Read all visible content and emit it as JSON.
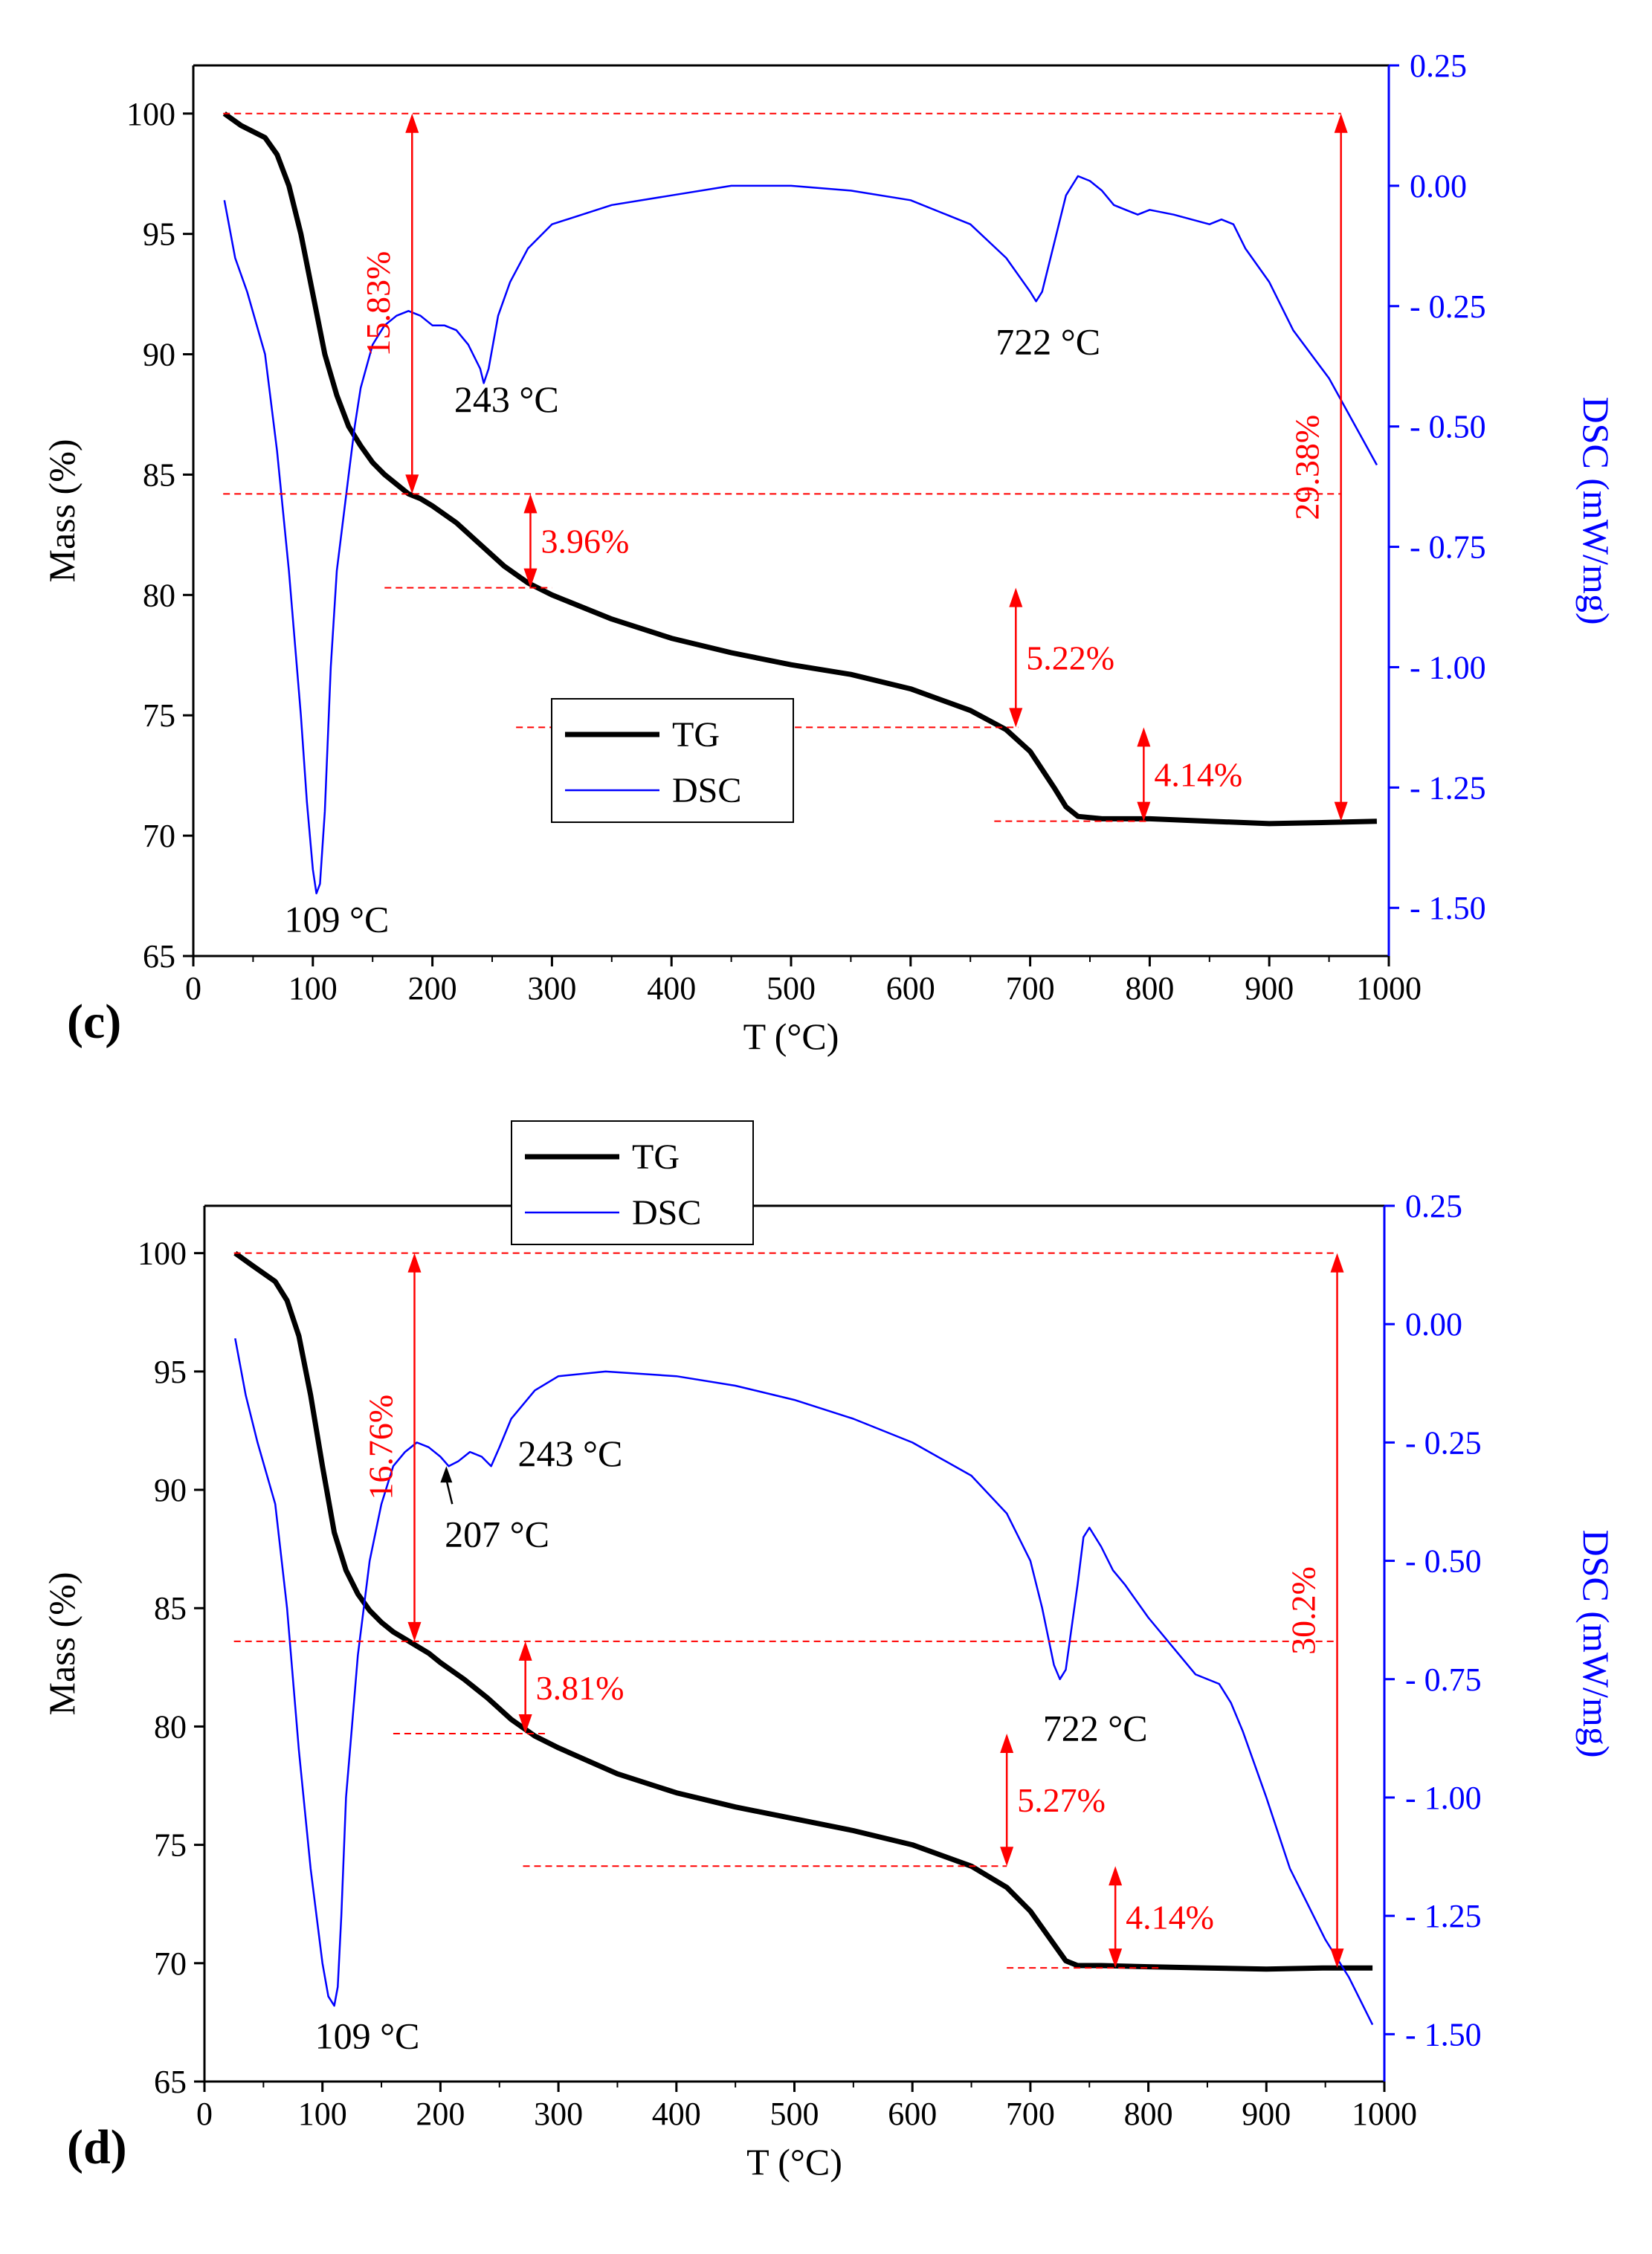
{
  "chart_data": [
    {
      "panel_label": "(c)",
      "type": "line",
      "xlabel": "T (°C)",
      "ylabel_left": "Mass (%)",
      "ylabel_right": "DSC (mW/mg)",
      "xlim": [
        0,
        1000
      ],
      "ylim_left": [
        65,
        102
      ],
      "ylim_right": [
        -1.6,
        0.25
      ],
      "x_ticks": [
        "0",
        "100",
        "200",
        "300",
        "400",
        "500",
        "600",
        "700",
        "800",
        "900",
        "1000"
      ],
      "y_ticks_left": [
        "65",
        "70",
        "75",
        "80",
        "85",
        "90",
        "95",
        "100"
      ],
      "y_ticks_right": [
        "0.25",
        "0.00",
        "- 0.25",
        "- 0.50",
        "- 0.75",
        "- 1.00",
        "- 1.25",
        "- 1.50"
      ],
      "y_ticks_right_values": [
        0.25,
        0,
        -0.25,
        -0.5,
        -0.75,
        -1.0,
        -1.25,
        -1.5
      ],
      "legend": [
        "TG",
        "DSC"
      ],
      "series": [
        {
          "name": "TG",
          "axis": "left",
          "color": "#000000",
          "x": [
            26,
            40,
            60,
            70,
            80,
            90,
            100,
            110,
            120,
            130,
            140,
            150,
            160,
            170,
            180,
            190,
            200,
            220,
            240,
            260,
            280,
            300,
            350,
            400,
            450,
            500,
            550,
            600,
            650,
            680,
            700,
            720,
            730,
            740,
            760,
            800,
            850,
            900,
            950,
            990
          ],
          "y": [
            100,
            99.5,
            99,
            98.3,
            97,
            95,
            92.5,
            90,
            88.3,
            87,
            86.2,
            85.5,
            85,
            84.6,
            84.2,
            84,
            83.7,
            83,
            82.1,
            81.2,
            80.5,
            80,
            79,
            78.2,
            77.6,
            77.1,
            76.7,
            76.1,
            75.2,
            74.4,
            73.5,
            72,
            71.2,
            70.8,
            70.7,
            70.7,
            70.6,
            70.5,
            70.55,
            70.6
          ]
        },
        {
          "name": "DSC",
          "axis": "right",
          "color": "#0000ff",
          "x": [
            26,
            35,
            45,
            60,
            70,
            80,
            90,
            95,
            100,
            103,
            106,
            110,
            115,
            120,
            125,
            130,
            135,
            140,
            150,
            160,
            170,
            180,
            190,
            200,
            210,
            220,
            230,
            240,
            243,
            247,
            255,
            265,
            280,
            300,
            350,
            400,
            450,
            500,
            550,
            600,
            650,
            680,
            700,
            705,
            710,
            720,
            730,
            740,
            750,
            760,
            770,
            780,
            790,
            800,
            820,
            850,
            860,
            870,
            880,
            900,
            920,
            950,
            990
          ],
          "y": [
            -0.03,
            -0.15,
            -0.22,
            -0.35,
            -0.55,
            -0.8,
            -1.1,
            -1.28,
            -1.42,
            -1.47,
            -1.45,
            -1.3,
            -1.0,
            -0.8,
            -0.7,
            -0.6,
            -0.5,
            -0.42,
            -0.33,
            -0.29,
            -0.27,
            -0.26,
            -0.27,
            -0.29,
            -0.29,
            -0.3,
            -0.33,
            -0.38,
            -0.41,
            -0.38,
            -0.27,
            -0.2,
            -0.13,
            -0.08,
            -0.04,
            -0.02,
            0.0,
            0.0,
            -0.01,
            -0.03,
            -0.08,
            -0.15,
            -0.22,
            -0.24,
            -0.22,
            -0.12,
            -0.02,
            0.02,
            0.01,
            -0.01,
            -0.04,
            -0.05,
            -0.06,
            -0.05,
            -0.06,
            -0.08,
            -0.07,
            -0.08,
            -0.13,
            -0.2,
            -0.3,
            -0.4,
            -0.58
          ]
        }
      ],
      "annotations": [
        {
          "text": "109 °C",
          "x": 120,
          "y_dsc": -1.55,
          "color": "#000000"
        },
        {
          "text": "243 °C",
          "x": 262,
          "y_dsc": -0.47,
          "color": "#000000"
        },
        {
          "text": "722 °C",
          "x": 715,
          "y_dsc": -0.35,
          "color": "#000000"
        }
      ],
      "mass_losses": [
        {
          "label": "15.83%",
          "x": 183,
          "from": 100,
          "to": 84.2,
          "line_start": 25,
          "line_end": 960,
          "label_side": "left",
          "rotated": true
        },
        {
          "label": "3.96%",
          "x": 282,
          "from": 84.2,
          "to": 80.3,
          "line_start": 160,
          "line_end": 300,
          "label_side": "right",
          "rotated": false
        },
        {
          "label": "5.22%",
          "x": 688,
          "from": 80.3,
          "to": 74.5,
          "line_start": 270,
          "line_end": 690,
          "label_side": "right",
          "rotated": false
        },
        {
          "label": "4.14%",
          "x": 795,
          "from": 74.5,
          "to": 70.6,
          "line_start": 670,
          "line_end": 800,
          "label_side": "right",
          "rotated": false
        },
        {
          "label": "29.38%",
          "x": 960,
          "from": 100,
          "to": 70.6,
          "line_start": 960,
          "line_end": 960,
          "label_side": "left",
          "rotated": true
        }
      ]
    },
    {
      "panel_label": "(d)",
      "type": "line",
      "xlabel": "T (°C)",
      "ylabel_left": "Mass (%)",
      "ylabel_right": "DSC (mW/mg)",
      "xlim": [
        0,
        1000
      ],
      "ylim_left": [
        65,
        102
      ],
      "ylim_right": [
        -1.6,
        0.25
      ],
      "x_ticks": [
        "0",
        "100",
        "200",
        "300",
        "400",
        "500",
        "600",
        "700",
        "800",
        "900",
        "1000"
      ],
      "y_ticks_left": [
        "65",
        "70",
        "75",
        "80",
        "85",
        "90",
        "95",
        "100"
      ],
      "y_ticks_right": [
        "0.25",
        "0.00",
        "- 0.25",
        "- 0.50",
        "- 0.75",
        "- 1.00",
        "- 1.25",
        "- 1.50"
      ],
      "y_ticks_right_values": [
        0.25,
        0,
        -0.25,
        -0.5,
        -0.75,
        -1.0,
        -1.25,
        -1.5
      ],
      "legend": [
        "TG",
        "DSC"
      ],
      "series": [
        {
          "name": "TG",
          "axis": "left",
          "color": "#000000",
          "x": [
            26,
            40,
            60,
            70,
            80,
            90,
            100,
            110,
            120,
            130,
            140,
            150,
            160,
            170,
            180,
            190,
            200,
            220,
            240,
            260,
            280,
            300,
            350,
            400,
            450,
            500,
            550,
            600,
            650,
            680,
            700,
            720,
            730,
            740,
            760,
            800,
            850,
            900,
            950,
            990
          ],
          "y": [
            100,
            99.5,
            98.8,
            98,
            96.5,
            94,
            91,
            88.2,
            86.6,
            85.6,
            84.9,
            84.4,
            84,
            83.7,
            83.4,
            83.1,
            82.7,
            82,
            81.2,
            80.3,
            79.6,
            79.1,
            78,
            77.2,
            76.6,
            76.1,
            75.6,
            75,
            74.1,
            73.2,
            72.2,
            70.8,
            70.1,
            69.9,
            69.9,
            69.85,
            69.8,
            69.75,
            69.8,
            69.8
          ]
        },
        {
          "name": "DSC",
          "axis": "right",
          "color": "#0000ff",
          "x": [
            26,
            35,
            45,
            60,
            70,
            80,
            90,
            100,
            105,
            110,
            113,
            116,
            120,
            125,
            130,
            140,
            150,
            160,
            170,
            180,
            190,
            200,
            207,
            215,
            225,
            235,
            243,
            250,
            260,
            280,
            300,
            340,
            400,
            450,
            500,
            550,
            600,
            650,
            680,
            700,
            710,
            720,
            725,
            730,
            740,
            745,
            750,
            760,
            770,
            780,
            800,
            820,
            840,
            860,
            870,
            880,
            900,
            920,
            950,
            970,
            990
          ],
          "y": [
            -0.03,
            -0.15,
            -0.25,
            -0.38,
            -0.6,
            -0.9,
            -1.15,
            -1.35,
            -1.42,
            -1.44,
            -1.4,
            -1.25,
            -1.0,
            -0.85,
            -0.7,
            -0.5,
            -0.38,
            -0.3,
            -0.27,
            -0.25,
            -0.26,
            -0.28,
            -0.3,
            -0.29,
            -0.27,
            -0.28,
            -0.3,
            -0.26,
            -0.2,
            -0.14,
            -0.11,
            -0.1,
            -0.11,
            -0.13,
            -0.16,
            -0.2,
            -0.25,
            -0.32,
            -0.4,
            -0.5,
            -0.6,
            -0.72,
            -0.75,
            -0.73,
            -0.55,
            -0.45,
            -0.43,
            -0.47,
            -0.52,
            -0.55,
            -0.62,
            -0.68,
            -0.74,
            -0.76,
            -0.8,
            -0.86,
            -1.0,
            -1.15,
            -1.3,
            -1.38,
            -1.48
          ]
        }
      ],
      "annotations": [
        {
          "text": "109 °C",
          "x": 138,
          "y_dsc": -1.53,
          "color": "#000000"
        },
        {
          "text": "207 °C",
          "x": 248,
          "y_dsc": -0.47,
          "color": "#000000"
        },
        {
          "text": "243 °C",
          "x": 310,
          "y_dsc": -0.3,
          "color": "#000000"
        },
        {
          "text": "722 °C",
          "x": 755,
          "y_dsc": -0.88,
          "color": "#000000"
        }
      ],
      "arrow_annotation": {
        "from_x": 210,
        "from_dsc": -0.38,
        "to_x": 205,
        "to_dsc": -0.3
      },
      "mass_losses": [
        {
          "label": "16.76%",
          "x": 178,
          "from": 100,
          "to": 83.6,
          "line_start": 25,
          "line_end": 960,
          "label_side": "left",
          "rotated": true
        },
        {
          "label": "3.81%",
          "x": 272,
          "from": 83.6,
          "to": 79.7,
          "line_start": 160,
          "line_end": 290,
          "label_side": "right",
          "rotated": false
        },
        {
          "label": "5.27%",
          "x": 680,
          "from": 79.7,
          "to": 74.1,
          "line_start": 270,
          "line_end": 680,
          "label_side": "right",
          "rotated": false
        },
        {
          "label": "4.14%",
          "x": 772,
          "from": 74.1,
          "to": 69.8,
          "line_start": 680,
          "line_end": 810,
          "label_side": "right",
          "rotated": false
        },
        {
          "label": "30.2%",
          "x": 960,
          "from": 100,
          "to": 69.8,
          "line_start": 960,
          "line_end": 960,
          "label_side": "left",
          "rotated": true
        }
      ]
    }
  ],
  "colors": {
    "axis": "#000000",
    "dsc": "#0000ff",
    "tg": "#000000",
    "annot": "#ff0000"
  }
}
